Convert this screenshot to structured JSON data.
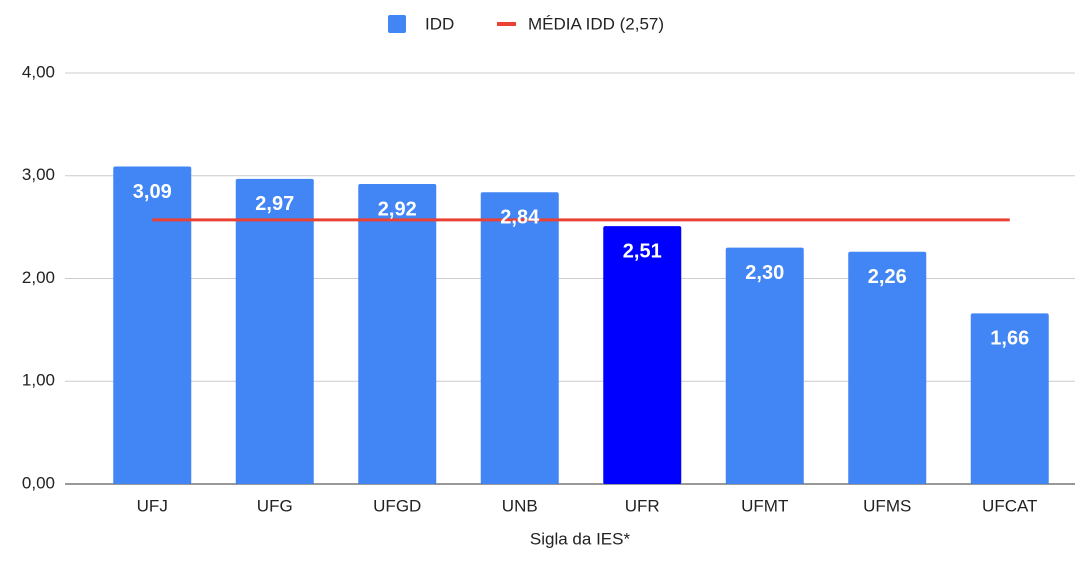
{
  "chart_data": {
    "type": "bar",
    "x_label": "Sigla da IES*",
    "categories": [
      "UFJ",
      "UFG",
      "UFGD",
      "UNB",
      "UFR",
      "UFMT",
      "UFMS",
      "UFCAT"
    ],
    "series": [
      {
        "name": "IDD",
        "type": "bar",
        "color": "#4285f4",
        "colors": [
          "#4285f4",
          "#4285f4",
          "#4285f4",
          "#4285f4",
          "#0000ff",
          "#4285f4",
          "#4285f4",
          "#4285f4"
        ],
        "values": [
          3.09,
          2.97,
          2.92,
          2.84,
          2.51,
          2.3,
          2.26,
          1.66
        ],
        "value_labels": [
          "3,09",
          "2,97",
          "2,92",
          "2,84",
          "2,51",
          "2,30",
          "2,26",
          "1,66"
        ]
      },
      {
        "name": "MÉDIA IDD (2,57)",
        "type": "line",
        "color": "#ea4335",
        "values": [
          2.57,
          2.57,
          2.57,
          2.57,
          2.57,
          2.57,
          2.57,
          2.57
        ]
      }
    ],
    "ylim": [
      0,
      4
    ],
    "yticks": [
      {
        "value": 0,
        "label": "0,00"
      },
      {
        "value": 1,
        "label": "1,00"
      },
      {
        "value": 2,
        "label": "2,00"
      },
      {
        "value": 3,
        "label": "3,00"
      },
      {
        "value": 4,
        "label": "4,00"
      }
    ],
    "grid": true,
    "legend": "top"
  }
}
